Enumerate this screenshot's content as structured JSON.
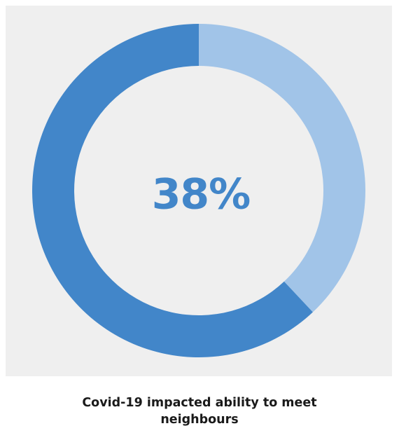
{
  "chart_data": {
    "type": "pie",
    "variant": "donut",
    "center_label": "38%",
    "slices": [
      {
        "value": 38,
        "color": "#a1c4e8"
      },
      {
        "value": 62,
        "color": "#4286c9"
      }
    ],
    "caption_lines": [
      "Covid-19 impacted ability to meet",
      "neighbours"
    ]
  },
  "colors": {
    "panel_background": "#efefef",
    "accent": "#4286c9",
    "highlight": "#a1c4e8",
    "label_color": "#4286c9"
  }
}
